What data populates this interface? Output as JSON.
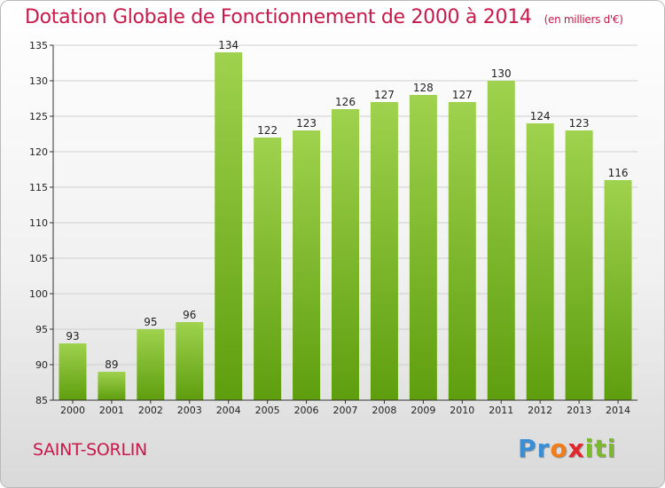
{
  "header": {
    "title": "Dotation Globale de Fonctionnement de 2000 à 2014",
    "unit": "(en milliers d'€)"
  },
  "footer": {
    "location": "SAINT-SORLIN",
    "logo_letters": [
      "P",
      "r",
      "o",
      "x",
      "i",
      "t",
      "i"
    ],
    "logo_colors": [
      "#3a8ed6",
      "#3a8ed6",
      "#f07d1a",
      "#e2252d",
      "#7cb92c",
      "#7cb92c",
      "#7cb92c"
    ]
  },
  "colors": {
    "title": "#c8194b",
    "bar_top": "#9fd24e",
    "bar_bottom": "#5e9e0e",
    "grid": "#cfcfcf"
  },
  "chart_data": {
    "type": "bar",
    "title": "Dotation Globale de Fonctionnement de 2000 à 2014",
    "subtitle": "(en milliers d'€)",
    "categories": [
      "2000",
      "2001",
      "2002",
      "2003",
      "2004",
      "2005",
      "2006",
      "2007",
      "2008",
      "2009",
      "2010",
      "2011",
      "2012",
      "2013",
      "2014"
    ],
    "values": [
      93,
      89,
      95,
      96,
      134,
      122,
      123,
      126,
      127,
      128,
      127,
      130,
      124,
      123,
      116
    ],
    "ylim": [
      85,
      135
    ],
    "yticks": [
      85,
      90,
      95,
      100,
      105,
      110,
      115,
      120,
      125,
      130,
      135
    ],
    "grid": true,
    "legend": "none"
  }
}
